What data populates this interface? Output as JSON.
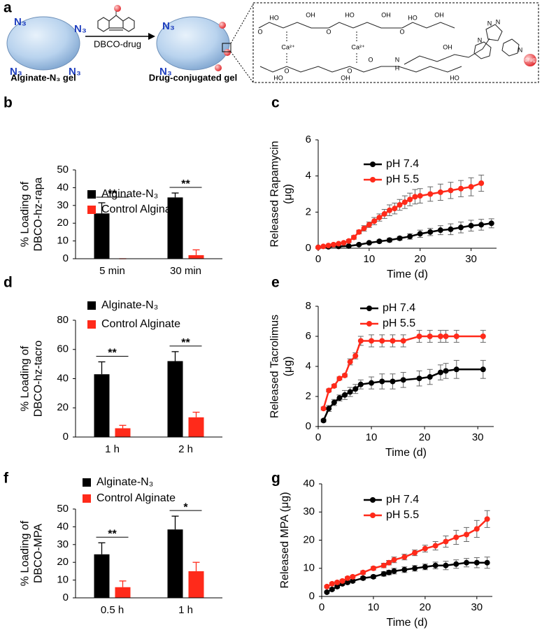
{
  "panel_a": {
    "panel": "a",
    "azide": "N₃",
    "arrow_label": "DBCO-drug",
    "left_label": "Alginate-N₃ gel",
    "right_label": "Drug-conjugated gel",
    "structure_labels": [
      "HO",
      "OH",
      "HO",
      "OH",
      "HO",
      "OH",
      "O",
      "O",
      "O",
      "Ca²⁺",
      "Ca²⁺",
      "O",
      "O",
      "N",
      "H",
      "HO",
      "OH",
      "HO",
      "N",
      "N",
      "N",
      "N",
      "drug",
      "O",
      "OH"
    ]
  },
  "chart_data": [
    {
      "type": "bar",
      "panel": "b",
      "ylabel": [
        "% Loading of",
        "DBCO-hz-rapa"
      ],
      "categories": [
        "5 min",
        "30 min"
      ],
      "series": [
        {
          "name": "Alginate-N₃",
          "color": "#000000",
          "values": [
            25.5,
            34.5
          ],
          "errors": [
            6,
            2.5
          ]
        },
        {
          "name": "Control Alginate",
          "color": "#ff2a1a",
          "values": [
            0,
            2
          ],
          "errors": [
            0,
            3
          ]
        }
      ],
      "significance": [
        "**",
        "**"
      ],
      "ylim": [
        0,
        50
      ],
      "yticks": [
        0,
        10,
        20,
        30,
        40,
        50
      ]
    },
    {
      "type": "line",
      "panel": "c",
      "xlabel": "Time (d)",
      "ylabel": [
        "Released Rapamycin",
        "(μg)"
      ],
      "series": [
        {
          "name": "pH 7.4",
          "color": "#000000",
          "x": [
            0,
            2,
            4,
            6,
            8,
            10,
            12,
            14,
            16,
            18,
            20,
            22,
            24,
            26,
            28,
            30,
            32,
            34
          ],
          "values": [
            0.05,
            0.08,
            0.1,
            0.12,
            0.2,
            0.3,
            0.38,
            0.45,
            0.55,
            0.65,
            0.8,
            0.9,
            1.0,
            1.05,
            1.15,
            1.25,
            1.3,
            1.38
          ],
          "errors": [
            0.02,
            0.02,
            0.03,
            0.03,
            0.05,
            0.05,
            0.08,
            0.1,
            0.1,
            0.15,
            0.2,
            0.2,
            0.25,
            0.3,
            0.3,
            0.3,
            0.3,
            0.25
          ]
        },
        {
          "name": "pH 5.5",
          "color": "#ff2a1a",
          "x": [
            0,
            1,
            2,
            3,
            4,
            5,
            6,
            7,
            8,
            9,
            10,
            11,
            12,
            13,
            14,
            15,
            16,
            17,
            18,
            19,
            20,
            22,
            24,
            26,
            28,
            30,
            32
          ],
          "values": [
            0.05,
            0.1,
            0.15,
            0.2,
            0.25,
            0.3,
            0.4,
            0.6,
            0.9,
            1.1,
            1.3,
            1.5,
            1.7,
            1.9,
            2.1,
            2.2,
            2.4,
            2.55,
            2.7,
            2.85,
            2.9,
            3.0,
            3.1,
            3.2,
            3.3,
            3.4,
            3.6
          ],
          "errors": [
            0.02,
            0.03,
            0.03,
            0.05,
            0.05,
            0.05,
            0.08,
            0.1,
            0.1,
            0.15,
            0.15,
            0.2,
            0.2,
            0.25,
            0.3,
            0.3,
            0.3,
            0.35,
            0.35,
            0.4,
            0.4,
            0.4,
            0.45,
            0.45,
            0.45,
            0.5,
            0.45
          ]
        }
      ],
      "xlim": [
        0,
        35
      ],
      "xticks": [
        0,
        10,
        20,
        30
      ],
      "ylim": [
        0,
        6
      ],
      "yticks": [
        0,
        2,
        4,
        6
      ]
    },
    {
      "type": "bar",
      "panel": "d",
      "ylabel": [
        "% Loading of",
        "DBCO-hz-tacro"
      ],
      "categories": [
        "1 h",
        "2 h"
      ],
      "series": [
        {
          "name": "Alginate-N₃",
          "color": "#000000",
          "values": [
            43,
            52
          ],
          "errors": [
            8.5,
            6.5
          ]
        },
        {
          "name": "Control Alginate",
          "color": "#ff2a1a",
          "values": [
            6,
            13.5
          ],
          "errors": [
            2,
            3.5
          ]
        }
      ],
      "significance": [
        "**",
        "**"
      ],
      "ylim": [
        0,
        80
      ],
      "yticks": [
        0,
        20,
        40,
        60,
        80
      ]
    },
    {
      "type": "line",
      "panel": "e",
      "xlabel": "Time (d)",
      "ylabel": [
        "Released Tacrolimus",
        "(μg)"
      ],
      "series": [
        {
          "name": "pH 7.4",
          "color": "#000000",
          "x": [
            1,
            2,
            3,
            4,
            5,
            6,
            7,
            8,
            10,
            12,
            14,
            16,
            19,
            21,
            23,
            24,
            26,
            31
          ],
          "values": [
            0.4,
            1.2,
            1.6,
            1.9,
            2.1,
            2.3,
            2.5,
            2.8,
            2.9,
            3.0,
            3.0,
            3.1,
            3.2,
            3.3,
            3.6,
            3.7,
            3.8,
            3.8
          ],
          "errors": [
            0.1,
            0.2,
            0.2,
            0.2,
            0.3,
            0.3,
            0.3,
            0.3,
            0.4,
            0.5,
            0.5,
            0.5,
            0.5,
            0.5,
            0.5,
            0.5,
            0.6,
            0.6
          ]
        },
        {
          "name": "pH 5.5",
          "color": "#ff2a1a",
          "x": [
            1,
            2,
            3,
            4,
            5,
            6,
            7,
            8,
            10,
            12,
            14,
            16,
            19,
            21,
            23,
            24,
            26,
            31
          ],
          "values": [
            1.2,
            2.4,
            2.7,
            3.2,
            3.4,
            4.3,
            4.7,
            5.7,
            5.7,
            5.7,
            5.7,
            5.7,
            6.0,
            6.0,
            6.0,
            6.0,
            6.0,
            6.0
          ],
          "errors": [
            0.1,
            0.1,
            0.1,
            0.1,
            0.1,
            0.2,
            0.2,
            0.3,
            0.4,
            0.4,
            0.4,
            0.4,
            0.4,
            0.4,
            0.4,
            0.4,
            0.4,
            0.4
          ]
        }
      ],
      "xlim": [
        0,
        33
      ],
      "xticks": [
        0,
        10,
        20,
        30
      ],
      "ylim": [
        0,
        8
      ],
      "yticks": [
        0,
        2,
        4,
        6,
        8
      ]
    },
    {
      "type": "bar",
      "panel": "f",
      "ylabel": [
        "% Loading of",
        "DBCO-MPA"
      ],
      "categories": [
        "0.5 h",
        "1 h"
      ],
      "series": [
        {
          "name": "Alginate-N₃",
          "color": "#000000",
          "values": [
            24.5,
            38.5
          ],
          "errors": [
            6.5,
            7.5
          ]
        },
        {
          "name": "Control Alginate",
          "color": "#ff2a1a",
          "values": [
            6,
            15
          ],
          "errors": [
            3.5,
            5
          ]
        }
      ],
      "significance": [
        "**",
        "*"
      ],
      "ylim": [
        0,
        50
      ],
      "yticks": [
        0,
        10,
        20,
        30,
        40,
        50
      ]
    },
    {
      "type": "line",
      "panel": "g",
      "xlabel": "Time (d)",
      "ylabel": [
        "Released MPA (μg)"
      ],
      "series": [
        {
          "name": "pH 7.4",
          "color": "#000000",
          "x": [
            1,
            2,
            3,
            4,
            5,
            6,
            8,
            10,
            12,
            13,
            14,
            16,
            18,
            20,
            22,
            24,
            26,
            28,
            30,
            32
          ],
          "values": [
            1.5,
            2.5,
            3.5,
            4.5,
            5,
            5.5,
            6.5,
            7,
            8,
            8.5,
            9,
            9.5,
            10,
            10.5,
            11,
            11,
            11.5,
            12,
            12,
            12
          ],
          "errors": [
            0.3,
            0.4,
            0.5,
            0.5,
            0.5,
            0.5,
            0.6,
            0.6,
            0.8,
            0.8,
            1,
            1,
            1,
            1,
            1.2,
            1.5,
            1.5,
            1.5,
            1.8,
            2
          ]
        },
        {
          "name": "pH 5.5",
          "color": "#ff2a1a",
          "x": [
            1,
            2,
            3,
            4,
            5,
            6,
            8,
            10,
            12,
            13,
            14,
            16,
            18,
            20,
            22,
            24,
            26,
            28,
            30,
            32
          ],
          "values": [
            3.5,
            4.5,
            5,
            5.5,
            6.5,
            7,
            8.5,
            10,
            11,
            12,
            13,
            14,
            15.5,
            17,
            18,
            19.5,
            21,
            22,
            24,
            27.5
          ],
          "errors": [
            0.3,
            0.4,
            0.4,
            0.5,
            0.5,
            0.5,
            0.6,
            0.6,
            0.8,
            0.8,
            1,
            1,
            1,
            1.2,
            1.5,
            2,
            2.5,
            2.5,
            3,
            3
          ]
        }
      ],
      "xlim": [
        0,
        33
      ],
      "xticks": [
        0,
        10,
        20,
        30
      ],
      "ylim": [
        0,
        40
      ],
      "yticks": [
        0,
        10,
        20,
        30,
        40
      ]
    }
  ]
}
